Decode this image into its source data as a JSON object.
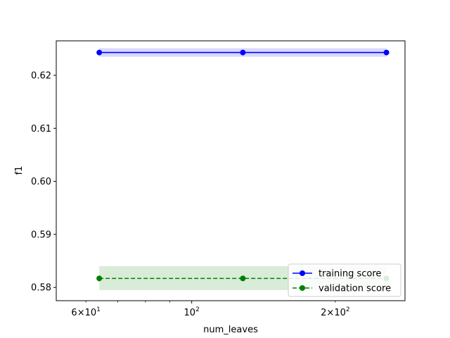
{
  "chart_data": {
    "type": "line",
    "xlabel": "num_leaves",
    "ylabel": "f1",
    "x_scale": "log",
    "x": [
      64,
      128,
      256
    ],
    "xlim": [
      52,
      280
    ],
    "ylim": [
      0.5775,
      0.6265
    ],
    "x_major_ticks": [
      {
        "value": 100,
        "base": "10",
        "exp": "2"
      }
    ],
    "x_minor_ticks": [
      {
        "value": 60,
        "mantissa": "6",
        "base": "10",
        "exp": "1"
      },
      {
        "value": 200,
        "mantissa": "2",
        "base": "10",
        "exp": "2"
      }
    ],
    "x_minor_unlabeled": [
      70,
      80,
      90
    ],
    "y_ticks": [
      {
        "value": 0.58,
        "label": "0.58"
      },
      {
        "value": 0.59,
        "label": "0.59"
      },
      {
        "value": 0.6,
        "label": "0.60"
      },
      {
        "value": 0.61,
        "label": "0.61"
      },
      {
        "value": 0.62,
        "label": "0.62"
      }
    ],
    "grid": false,
    "legend_position": "bottom-right",
    "series": [
      {
        "name": "training score",
        "values": [
          0.6243,
          0.6243,
          0.6243
        ],
        "band_low": [
          0.6235,
          0.6235,
          0.6235
        ],
        "band_high": [
          0.6251,
          0.6251,
          0.6251
        ],
        "color": "#0000ff",
        "band_color": "#0000ff",
        "line_style": "solid",
        "marker": "circle"
      },
      {
        "name": "validation score",
        "values": [
          0.5817,
          0.5817,
          0.5817
        ],
        "band_low": [
          0.5795,
          0.5795,
          0.5795
        ],
        "band_high": [
          0.584,
          0.584,
          0.584
        ],
        "color": "#008000",
        "band_color": "#008000",
        "line_style": "dashed",
        "marker": "circle"
      }
    ]
  }
}
